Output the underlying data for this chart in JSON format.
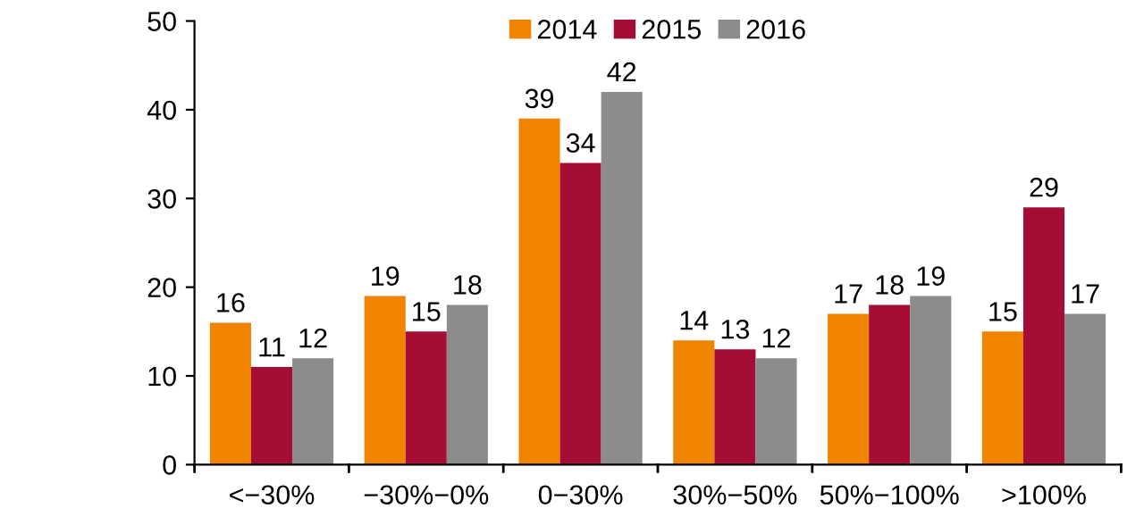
{
  "chart_data": {
    "type": "bar",
    "categories": [
      "<−30%",
      "−30%−0%",
      "0−30%",
      "30%−50%",
      "50%−100%",
      ">100%"
    ],
    "series": [
      {
        "name": "2014",
        "color": "#f08300",
        "values": [
          16,
          19,
          39,
          14,
          17,
          15
        ]
      },
      {
        "name": "2015",
        "color": "#a50d35",
        "values": [
          11,
          15,
          34,
          13,
          18,
          29
        ]
      },
      {
        "name": "2016",
        "color": "#8c8c8c",
        "values": [
          12,
          18,
          42,
          12,
          19,
          17
        ]
      }
    ],
    "ylim": [
      0,
      50
    ],
    "yticks": [
      0,
      10,
      20,
      30,
      40,
      50
    ],
    "grid": false,
    "legend": "top",
    "data_labels": true
  }
}
